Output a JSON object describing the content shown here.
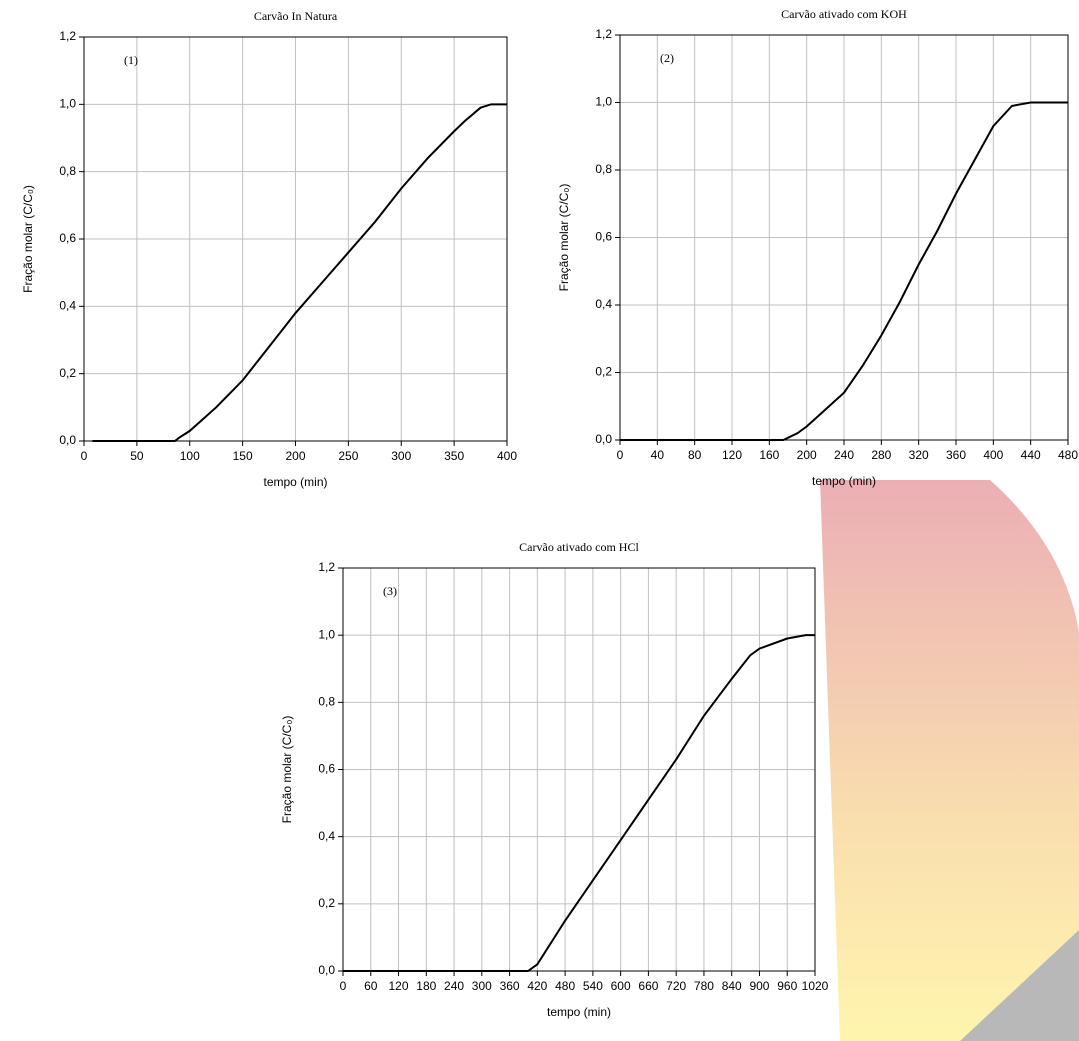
{
  "chart_data": [
    {
      "type": "line",
      "title": "Carvão In Natura",
      "annotation": "(1)",
      "x_label": "tempo (min)",
      "y_label": "Fração molar (C/C₀)",
      "x": [
        8,
        50,
        86,
        90,
        100,
        125,
        150,
        175,
        200,
        225,
        250,
        275,
        300,
        325,
        350,
        360,
        375,
        385,
        400
      ],
      "values": [
        0,
        0,
        0,
        0.01,
        0.03,
        0.1,
        0.18,
        0.28,
        0.38,
        0.47,
        0.56,
        0.65,
        0.75,
        0.84,
        0.92,
        0.95,
        0.99,
        1.0,
        1.0
      ],
      "color": "#000000",
      "xlim": [
        0,
        400
      ],
      "ylim": [
        0,
        1.2
      ],
      "xticks": [
        0,
        50,
        100,
        150,
        200,
        250,
        300,
        350,
        400
      ],
      "yticks": [
        {
          "value": 0,
          "label": "0,0"
        },
        {
          "value": 0.2,
          "label": "0,2"
        },
        {
          "value": 0.4,
          "label": "0,4"
        },
        {
          "value": 0.6,
          "label": "0,6"
        },
        {
          "value": 0.8,
          "label": "0,8"
        },
        {
          "value": 1.0,
          "label": "1,0"
        },
        {
          "value": 1.2,
          "label": "1,2"
        }
      ],
      "grid": true
    },
    {
      "type": "line",
      "title": "Carvão ativado com KOH",
      "annotation": "(2)",
      "x_label": "tempo (min)",
      "y_label": "Fração molar (C/C₀)",
      "x": [
        0,
        100,
        175,
        190,
        200,
        220,
        240,
        260,
        280,
        300,
        320,
        340,
        360,
        380,
        400,
        420,
        440,
        480
      ],
      "values": [
        0,
        0,
        0,
        0.02,
        0.04,
        0.09,
        0.14,
        0.22,
        0.31,
        0.41,
        0.52,
        0.62,
        0.73,
        0.83,
        0.93,
        0.99,
        1.0,
        1.0
      ],
      "color": "#000000",
      "xlim": [
        0,
        480
      ],
      "ylim": [
        0,
        1.2
      ],
      "xticks": [
        0,
        40,
        80,
        120,
        160,
        200,
        240,
        280,
        320,
        360,
        400,
        440,
        480
      ],
      "yticks": [
        {
          "value": 0,
          "label": "0,0"
        },
        {
          "value": 0.2,
          "label": "0,2"
        },
        {
          "value": 0.4,
          "label": "0,4"
        },
        {
          "value": 0.6,
          "label": "0,6"
        },
        {
          "value": 0.8,
          "label": "0,8"
        },
        {
          "value": 1.0,
          "label": "1,0"
        },
        {
          "value": 1.2,
          "label": "1,2"
        }
      ],
      "grid": true
    },
    {
      "type": "line",
      "title": "Carvão ativado com HCl",
      "annotation": "(3)",
      "x_label": "tempo (min)",
      "y_label": "Fração molar (C/C₀)",
      "x": [
        0,
        200,
        400,
        420,
        480,
        540,
        600,
        660,
        720,
        780,
        840,
        880,
        900,
        960,
        1000,
        1020
      ],
      "values": [
        0,
        0,
        0,
        0.02,
        0.15,
        0.27,
        0.39,
        0.51,
        0.63,
        0.76,
        0.87,
        0.94,
        0.96,
        0.99,
        1.0,
        1.0
      ],
      "color": "#000000",
      "xlim": [
        0,
        1020
      ],
      "ylim": [
        0,
        1.2
      ],
      "xticks": [
        0,
        60,
        120,
        180,
        240,
        300,
        360,
        420,
        480,
        540,
        600,
        660,
        720,
        780,
        840,
        900,
        960,
        1020
      ],
      "yticks": [
        {
          "value": 0,
          "label": "0,0"
        },
        {
          "value": 0.2,
          "label": "0,2"
        },
        {
          "value": 0.4,
          "label": "0,4"
        },
        {
          "value": 0.6,
          "label": "0,6"
        },
        {
          "value": 0.8,
          "label": "0,8"
        },
        {
          "value": 1.0,
          "label": "1,0"
        },
        {
          "value": 1.2,
          "label": "1,2"
        }
      ],
      "grid": true
    }
  ]
}
